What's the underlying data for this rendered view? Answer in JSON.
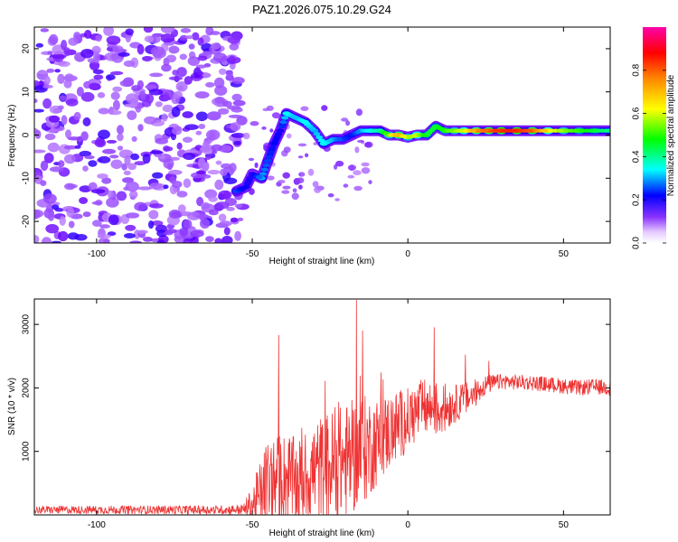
{
  "title": "PAZ1.2026.075.10.29.G24",
  "chart_data": [
    {
      "type": "heatmap",
      "name": "spectrogram",
      "xlabel": "Height of straight line (km)",
      "ylabel": "Frequency (Hz)",
      "xlim": [
        -120,
        65
      ],
      "ylim": [
        -25,
        25
      ],
      "xticks": [
        -100,
        -50,
        0,
        50
      ],
      "yticks": [
        -20,
        -10,
        0,
        10,
        20
      ],
      "xtick_labels": [
        "-100",
        "-50",
        "0",
        "50"
      ],
      "ytick_labels": [
        "-20",
        "-10",
        "0",
        "10",
        "20"
      ],
      "colorbar": {
        "label": "Normalized spectral amplitude",
        "range": [
          0,
          1
        ],
        "ticks": [
          0.0,
          0.2,
          0.4,
          0.6,
          0.8
        ],
        "tick_labels": [
          "0.0",
          "0.2",
          "0.4",
          "0.6",
          "0.8"
        ],
        "colors": [
          "#ffffff",
          "#cc99ff",
          "#6600ff",
          "#0000ff",
          "#00ffff",
          "#00ff00",
          "#ffff00",
          "#ff8800",
          "#ff0000",
          "#ff00aa"
        ]
      },
      "noise_region_x": [
        -120,
        -53
      ],
      "ridge": [
        {
          "x": -55,
          "y": -13,
          "amp": 0.25
        },
        {
          "x": -52,
          "y": -12,
          "amp": 0.2
        },
        {
          "x": -50,
          "y": -9,
          "amp": 0.18
        },
        {
          "x": -47,
          "y": -10,
          "amp": 0.3
        },
        {
          "x": -45,
          "y": -6,
          "amp": 0.25
        },
        {
          "x": -43,
          "y": -2,
          "amp": 0.22
        },
        {
          "x": -41,
          "y": 1,
          "amp": 0.2
        },
        {
          "x": -39,
          "y": 5,
          "amp": 0.35
        },
        {
          "x": -36,
          "y": 4,
          "amp": 0.3
        },
        {
          "x": -33,
          "y": 3,
          "amp": 0.35
        },
        {
          "x": -30,
          "y": 1,
          "amp": 0.3
        },
        {
          "x": -27,
          "y": -2,
          "amp": 0.35
        },
        {
          "x": -24,
          "y": -1,
          "amp": 0.3
        },
        {
          "x": -21,
          "y": -1,
          "amp": 0.25
        },
        {
          "x": -18,
          "y": 0,
          "amp": 0.22
        },
        {
          "x": -15,
          "y": 1,
          "amp": 0.3
        },
        {
          "x": -12,
          "y": 1,
          "amp": 0.35
        },
        {
          "x": -9,
          "y": 1,
          "amp": 0.4
        },
        {
          "x": -6,
          "y": 0,
          "amp": 0.55
        },
        {
          "x": -3,
          "y": 0,
          "amp": 0.75
        },
        {
          "x": 0,
          "y": -0.5,
          "amp": 0.55
        },
        {
          "x": 3,
          "y": 0,
          "amp": 0.6
        },
        {
          "x": 6,
          "y": 0,
          "amp": 0.45
        },
        {
          "x": 9,
          "y": 2,
          "amp": 0.45
        },
        {
          "x": 12,
          "y": 1,
          "amp": 0.5
        },
        {
          "x": 15,
          "y": 1,
          "amp": 0.55
        },
        {
          "x": 18,
          "y": 1,
          "amp": 0.6
        },
        {
          "x": 22,
          "y": 1,
          "amp": 0.75
        },
        {
          "x": 26,
          "y": 1,
          "amp": 0.8
        },
        {
          "x": 30,
          "y": 1,
          "amp": 0.85
        },
        {
          "x": 35,
          "y": 1,
          "amp": 0.85
        },
        {
          "x": 40,
          "y": 1,
          "amp": 0.8
        },
        {
          "x": 45,
          "y": 1,
          "amp": 0.65
        },
        {
          "x": 50,
          "y": 1,
          "amp": 0.55
        },
        {
          "x": 55,
          "y": 1,
          "amp": 0.5
        },
        {
          "x": 60,
          "y": 1,
          "amp": 0.45
        },
        {
          "x": 65,
          "y": 1,
          "amp": 0.4
        }
      ]
    },
    {
      "type": "line",
      "name": "snr",
      "xlabel": "Height of straight line (km)",
      "ylabel": "SNR (10 * v/v)",
      "xlim": [
        -120,
        65
      ],
      "ylim": [
        0,
        3400
      ],
      "xticks": [
        -100,
        -50,
        0,
        50
      ],
      "yticks": [
        1000,
        2000,
        3000
      ],
      "xtick_labels": [
        "-100",
        "-50",
        "0",
        "50"
      ],
      "ytick_labels": [
        "1000",
        "2000",
        "3000"
      ],
      "color": "#ee3333",
      "envelope": {
        "x": [
          -120,
          -60,
          -53,
          -50,
          -45,
          -40,
          -35,
          -30,
          -25,
          -20,
          -15,
          -10,
          -5,
          0,
          5,
          10,
          15,
          20,
          25,
          30,
          40,
          50,
          55,
          60,
          65
        ],
        "base": [
          80,
          80,
          85,
          150,
          450,
          600,
          500,
          700,
          750,
          850,
          1000,
          1150,
          1350,
          1500,
          1700,
          1650,
          1750,
          1850,
          2050,
          2100,
          2080,
          2030,
          2000,
          2020,
          2000
        ],
        "amp": [
          60,
          70,
          80,
          300,
          800,
          700,
          700,
          800,
          900,
          900,
          900,
          700,
          600,
          500,
          450,
          450,
          300,
          250,
          150,
          120,
          120,
          120,
          120,
          120,
          120
        ]
      },
      "peaks": [
        {
          "x": -41.5,
          "y": 2830
        },
        {
          "x": -16.5,
          "y": 3380
        },
        {
          "x": -14.5,
          "y": 2900
        },
        {
          "x": 8.5,
          "y": 2950
        },
        {
          "x": 18.5,
          "y": 2520
        },
        {
          "x": 26.0,
          "y": 2420
        }
      ]
    }
  ]
}
